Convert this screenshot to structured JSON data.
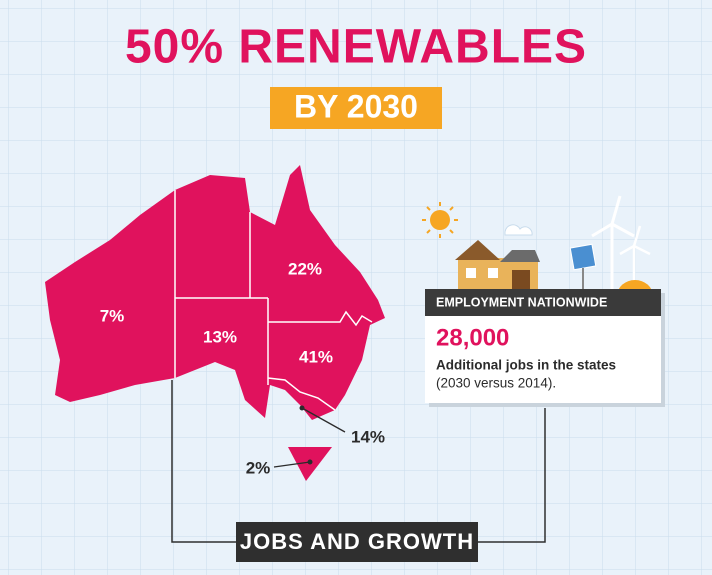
{
  "header": {
    "title": "50% RENEWABLES",
    "subtitle": "BY 2030"
  },
  "map": {
    "labels": {
      "wa": "7%",
      "sa": "13%",
      "qld": "22%",
      "nsw": "41%",
      "vic": "14%",
      "tas": "2%"
    }
  },
  "card": {
    "heading": "EMPLOYMENT NATIONWIDE",
    "figure": "28,000",
    "line1": "Additional jobs in the states",
    "line2": "(2030 versus 2014)."
  },
  "footer": {
    "label": "JOBS AND GROWTH"
  }
}
